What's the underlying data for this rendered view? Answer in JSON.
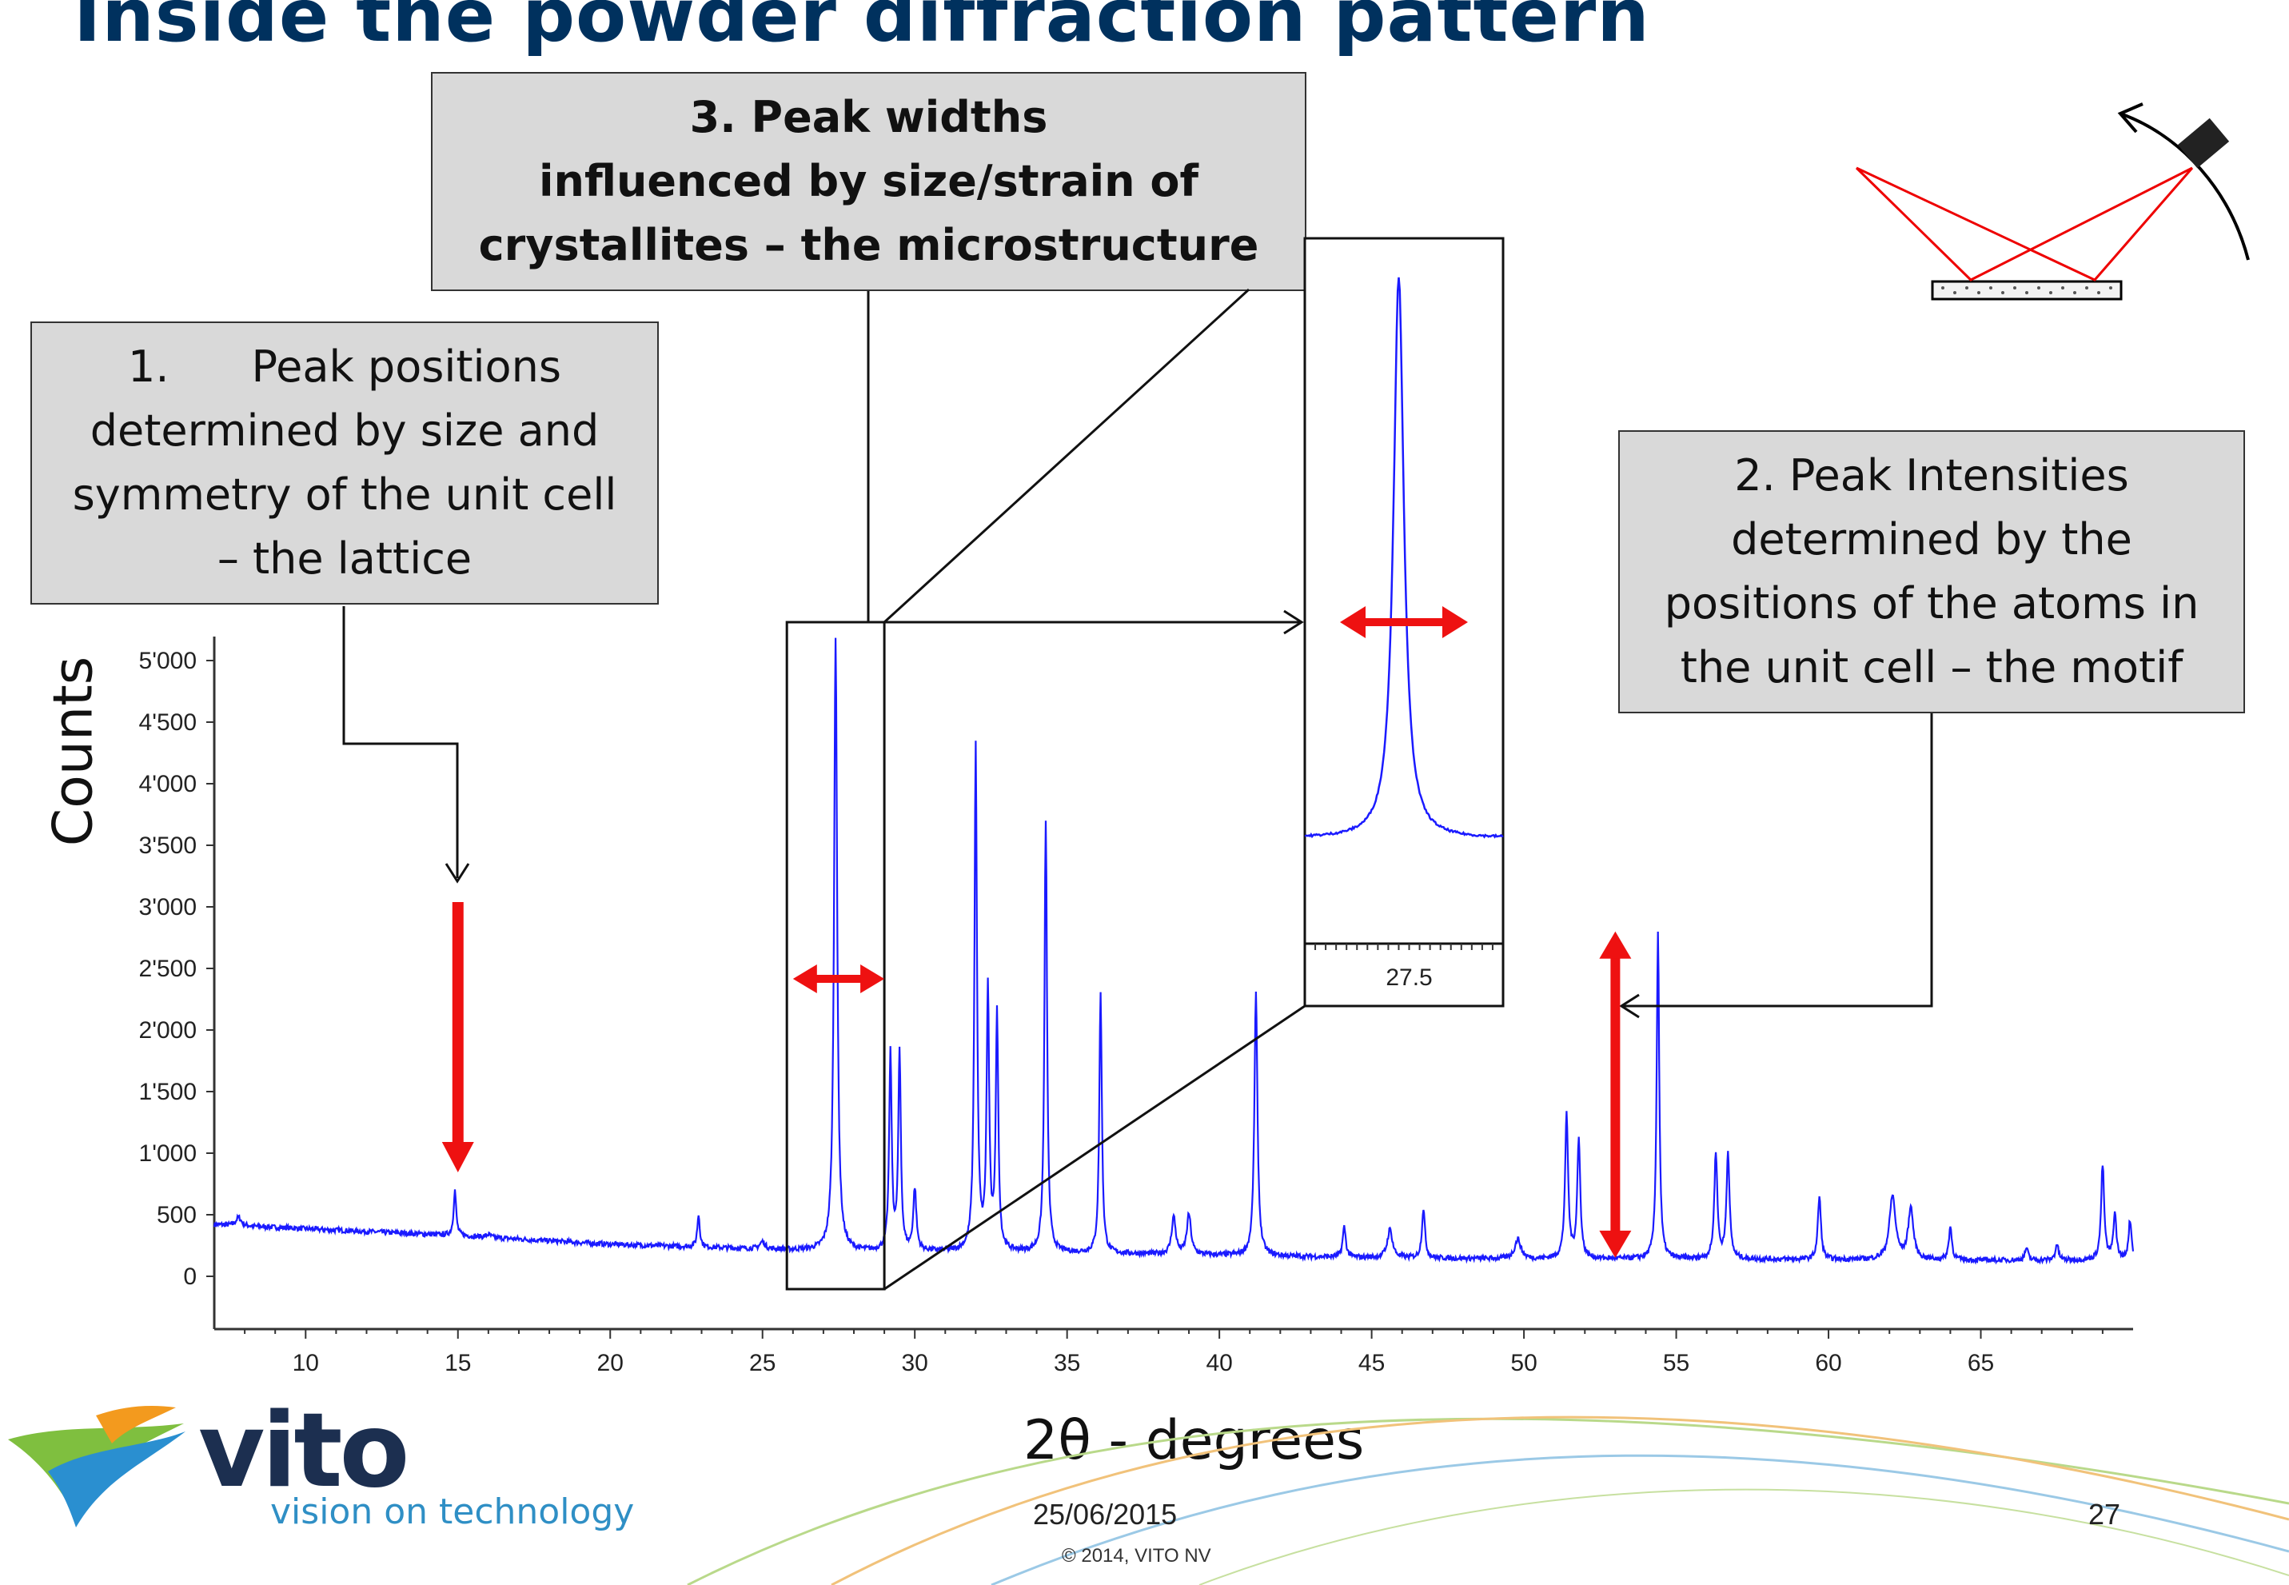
{
  "slide": {
    "title": "Inside the powder diffraction pattern",
    "callout_1": [
      "1.      Peak positions",
      "determined by size and",
      "symmetry of the unit cell",
      "– the lattice"
    ],
    "callout_2": [
      "2. Peak Intensities",
      "determined by the",
      "positions of the atoms in",
      "the unit cell – the motif"
    ],
    "callout_3": [
      "3. Peak widths",
      "influenced by size/strain of",
      "crystallites – the microstructure"
    ],
    "footer": {
      "date": "25/06/2015",
      "copyright": "© 2014, VITO NV",
      "page": "27"
    },
    "logo": {
      "name": "vito",
      "tagline": "vision on technology"
    },
    "colors": {
      "title": "#00315e",
      "trace": "#1a1aff",
      "arrow": "#ee1111",
      "callout_bg": "#d9d9d9",
      "logo_text": "#1c2f50",
      "logo_tagline": "#2f8fc5"
    },
    "icons": [
      "diffraction-geometry-icon",
      "vito-logo-icon"
    ]
  },
  "chart_data": {
    "type": "line",
    "xlabel": "2θ - degrees",
    "ylabel": "Counts",
    "xlim": [
      7,
      70
    ],
    "ylim": [
      0,
      5000
    ],
    "x_ticks": [
      10,
      15,
      20,
      25,
      30,
      35,
      40,
      45,
      50,
      55,
      60,
      65
    ],
    "y_ticks": [
      0,
      500,
      1000,
      1500,
      2000,
      2500,
      3000,
      3500,
      4000,
      4500,
      5000
    ],
    "y_tick_labels": [
      "0",
      "500",
      "1'000",
      "1'500",
      "2'000",
      "2'500",
      "3'000",
      "3'500",
      "4'000",
      "4'500",
      "5'000"
    ],
    "grid": false,
    "background": [
      [
        7,
        420
      ],
      [
        15,
        330
      ],
      [
        20,
        260
      ],
      [
        25,
        220
      ],
      [
        28,
        200
      ],
      [
        30,
        200
      ],
      [
        35,
        190
      ],
      [
        40,
        170
      ],
      [
        45,
        150
      ],
      [
        50,
        140
      ],
      [
        55,
        140
      ],
      [
        60,
        135
      ],
      [
        65,
        130
      ],
      [
        70,
        130
      ]
    ],
    "peaks": [
      {
        "x": 7.8,
        "y": 480,
        "w": 0.1
      },
      {
        "x": 14.9,
        "y": 700,
        "w": 0.05
      },
      {
        "x": 16.0,
        "y": 340,
        "w": 0.08
      },
      {
        "x": 22.9,
        "y": 500,
        "w": 0.05
      },
      {
        "x": 25.0,
        "y": 280,
        "w": 0.1
      },
      {
        "x": 27.4,
        "y": 5200,
        "w": 0.06
      },
      {
        "x": 29.2,
        "y": 1800,
        "w": 0.05
      },
      {
        "x": 29.5,
        "y": 1800,
        "w": 0.05
      },
      {
        "x": 30.0,
        "y": 700,
        "w": 0.06
      },
      {
        "x": 32.0,
        "y": 4300,
        "w": 0.05
      },
      {
        "x": 32.4,
        "y": 2300,
        "w": 0.05
      },
      {
        "x": 32.7,
        "y": 2100,
        "w": 0.05
      },
      {
        "x": 34.3,
        "y": 3700,
        "w": 0.05
      },
      {
        "x": 36.1,
        "y": 2300,
        "w": 0.05
      },
      {
        "x": 38.5,
        "y": 480,
        "w": 0.08
      },
      {
        "x": 39.0,
        "y": 500,
        "w": 0.08
      },
      {
        "x": 41.2,
        "y": 2300,
        "w": 0.06
      },
      {
        "x": 44.1,
        "y": 400,
        "w": 0.06
      },
      {
        "x": 45.6,
        "y": 380,
        "w": 0.1
      },
      {
        "x": 46.7,
        "y": 550,
        "w": 0.06
      },
      {
        "x": 49.8,
        "y": 300,
        "w": 0.12
      },
      {
        "x": 51.4,
        "y": 1300,
        "w": 0.06
      },
      {
        "x": 51.8,
        "y": 1100,
        "w": 0.06
      },
      {
        "x": 54.4,
        "y": 2800,
        "w": 0.05
      },
      {
        "x": 56.3,
        "y": 1000,
        "w": 0.06
      },
      {
        "x": 56.7,
        "y": 1000,
        "w": 0.06
      },
      {
        "x": 59.7,
        "y": 650,
        "w": 0.06
      },
      {
        "x": 62.1,
        "y": 650,
        "w": 0.12
      },
      {
        "x": 62.7,
        "y": 550,
        "w": 0.1
      },
      {
        "x": 64.0,
        "y": 400,
        "w": 0.06
      },
      {
        "x": 66.5,
        "y": 230,
        "w": 0.06
      },
      {
        "x": 67.5,
        "y": 260,
        "w": 0.06
      },
      {
        "x": 69.0,
        "y": 900,
        "w": 0.06
      },
      {
        "x": 69.4,
        "y": 500,
        "w": 0.06
      },
      {
        "x": 69.9,
        "y": 450,
        "w": 0.06
      }
    ],
    "annotations": {
      "position_arrow_x": 15,
      "width_arrow_x": [
        26,
        29
      ],
      "intensity_arrow": {
        "x": 53,
        "y": [
          150,
          2800
        ]
      },
      "zoom_box_x": [
        25.8,
        29.0
      ],
      "inset": {
        "xlim": [
          26.5,
          28.4
        ],
        "tick": "27.5"
      }
    }
  }
}
